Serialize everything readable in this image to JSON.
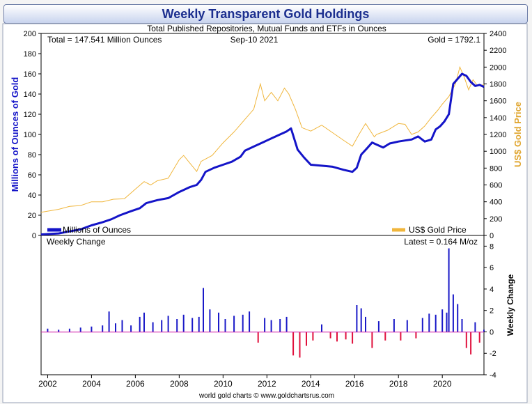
{
  "chart_data": {
    "type": "line",
    "title": "Weekly Transparent Gold Holdings",
    "subtitle": "Total Published Repositories, Mutual Funds and ETFs in Ounces",
    "annotations": {
      "total": "Total = 147.541 Million Ounces",
      "date": "Sep-10  2021",
      "gold": "Gold = 1792.1",
      "weekly_change": "Weekly Change",
      "latest": "Latest = 0.164 M/oz"
    },
    "credit": "world gold charts © www.goldchartsrus.com",
    "ylabel_left": "Millions of Ounces of Gold",
    "ylabel_right": "US$ Gold Price",
    "ylabel_bottom": "Weekly Change",
    "x_ticks": [
      "2002",
      "2004",
      "2006",
      "2008",
      "2010",
      "2012",
      "2014",
      "2016",
      "2018",
      "2020"
    ],
    "xlim": [
      2001.7,
      2021.9
    ],
    "ylim_left": [
      0,
      200
    ],
    "ylim_right": [
      0,
      2400
    ],
    "ylim_bottom": [
      -4,
      9
    ],
    "yticks_left": [
      0,
      20,
      40,
      60,
      80,
      100,
      120,
      140,
      160,
      180,
      200
    ],
    "yticks_right": [
      0,
      200,
      400,
      600,
      800,
      1000,
      1200,
      1400,
      1600,
      1800,
      2000,
      2200,
      2400
    ],
    "yticks_bottom": [
      -4,
      -2,
      0,
      2,
      4,
      6,
      8
    ],
    "series": [
      {
        "name": "Millions of Ounces",
        "axis": "left",
        "color": "#1414c8",
        "x": [
          2001.7,
          2002.5,
          2003.0,
          2003.5,
          2004.0,
          2004.5,
          2004.9,
          2005.3,
          2005.8,
          2006.2,
          2006.5,
          2007.0,
          2007.5,
          2008.0,
          2008.5,
          2008.8,
          2009.0,
          2009.2,
          2009.6,
          2010.0,
          2010.4,
          2010.8,
          2011.0,
          2011.4,
          2011.8,
          2012.2,
          2012.6,
          2012.9,
          2013.1,
          2013.4,
          2013.7,
          2014.0,
          2014.5,
          2015.0,
          2015.5,
          2015.9,
          2016.1,
          2016.3,
          2016.6,
          2016.8,
          2017.0,
          2017.3,
          2017.6,
          2018.0,
          2018.3,
          2018.6,
          2018.9,
          2019.2,
          2019.5,
          2019.7,
          2019.9,
          2020.1,
          2020.3,
          2020.5,
          2020.7,
          2020.9,
          2021.1,
          2021.3,
          2021.5,
          2021.7,
          2021.9
        ],
        "values": [
          1,
          2,
          4,
          6,
          10,
          13,
          16,
          20,
          24,
          27,
          32,
          35,
          37,
          43,
          48,
          50,
          55,
          63,
          67,
          70,
          73,
          78,
          84,
          88,
          92,
          96,
          100,
          103,
          106,
          85,
          77,
          70,
          69,
          68,
          65,
          63,
          67,
          80,
          87,
          92,
          90,
          87,
          91,
          93,
          94,
          95,
          98,
          93,
          95,
          105,
          108,
          113,
          120,
          150,
          155,
          160,
          158,
          152,
          148,
          149,
          147
        ]
      },
      {
        "name": "US$ Gold Price",
        "axis": "right",
        "color": "#f0b63c",
        "x": [
          2001.7,
          2002.5,
          2003.0,
          2003.5,
          2004.0,
          2004.5,
          2005.0,
          2005.5,
          2006.0,
          2006.4,
          2006.7,
          2007.0,
          2007.5,
          2008.0,
          2008.2,
          2008.8,
          2009.0,
          2009.5,
          2010.0,
          2010.5,
          2011.0,
          2011.4,
          2011.7,
          2011.9,
          2012.2,
          2012.5,
          2012.8,
          2013.0,
          2013.3,
          2013.6,
          2014.0,
          2014.5,
          2015.0,
          2015.5,
          2015.9,
          2016.2,
          2016.5,
          2016.9,
          2017.0,
          2017.5,
          2018.0,
          2018.3,
          2018.6,
          2018.9,
          2019.2,
          2019.5,
          2019.8,
          2020.0,
          2020.3,
          2020.6,
          2020.8,
          2021.0,
          2021.2,
          2021.4,
          2021.6,
          2021.9
        ],
        "values": [
          275,
          310,
          345,
          355,
          400,
          400,
          430,
          435,
          550,
          640,
          600,
          650,
          680,
          900,
          950,
          760,
          880,
          950,
          1100,
          1230,
          1380,
          1500,
          1800,
          1600,
          1700,
          1600,
          1750,
          1680,
          1500,
          1280,
          1240,
          1310,
          1220,
          1130,
          1060,
          1200,
          1330,
          1170,
          1200,
          1250,
          1330,
          1320,
          1200,
          1230,
          1300,
          1400,
          1490,
          1560,
          1650,
          1800,
          2000,
          1880,
          1730,
          1850,
          1780,
          1790
        ]
      },
      {
        "name": "Weekly Change",
        "axis": "bottom",
        "type": "bar",
        "color_positive": "#1a1ac8",
        "color_negative": "#e0103c",
        "x": [
          2002.0,
          2002.5,
          2003.0,
          2003.5,
          2004.0,
          2004.5,
          2004.8,
          2005.1,
          2005.4,
          2005.8,
          2006.2,
          2006.4,
          2006.8,
          2007.2,
          2007.5,
          2007.9,
          2008.2,
          2008.6,
          2008.9,
          2009.1,
          2009.4,
          2009.8,
          2010.1,
          2010.5,
          2010.9,
          2011.2,
          2011.6,
          2011.9,
          2012.2,
          2012.6,
          2012.9,
          2013.2,
          2013.5,
          2013.8,
          2014.1,
          2014.5,
          2014.9,
          2015.2,
          2015.6,
          2015.9,
          2016.1,
          2016.3,
          2016.5,
          2016.8,
          2017.1,
          2017.4,
          2017.8,
          2018.1,
          2018.4,
          2018.8,
          2019.1,
          2019.4,
          2019.7,
          2020.0,
          2020.2,
          2020.3,
          2020.5,
          2020.7,
          2020.9,
          2021.1,
          2021.3,
          2021.5,
          2021.7,
          2021.9
        ],
        "values": [
          0.3,
          0.2,
          0.3,
          0.4,
          0.5,
          0.6,
          1.9,
          0.8,
          1.1,
          0.6,
          1.4,
          1.8,
          0.9,
          1.1,
          1.5,
          1.2,
          1.6,
          1.3,
          1.4,
          4.1,
          2.1,
          1.8,
          1.2,
          1.5,
          1.6,
          1.9,
          -1.0,
          1.3,
          1.1,
          1.2,
          1.4,
          -2.2,
          -2.4,
          -1.3,
          -0.8,
          0.7,
          -0.6,
          -0.9,
          -0.7,
          -1.1,
          2.5,
          2.2,
          1.4,
          -1.5,
          1.0,
          -0.8,
          1.2,
          -0.8,
          1.1,
          -0.6,
          1.3,
          1.7,
          1.6,
          2.1,
          1.8,
          7.8,
          3.5,
          2.6,
          1.2,
          -1.5,
          -2.1,
          0.9,
          -1.0,
          0.2
        ]
      }
    ]
  }
}
